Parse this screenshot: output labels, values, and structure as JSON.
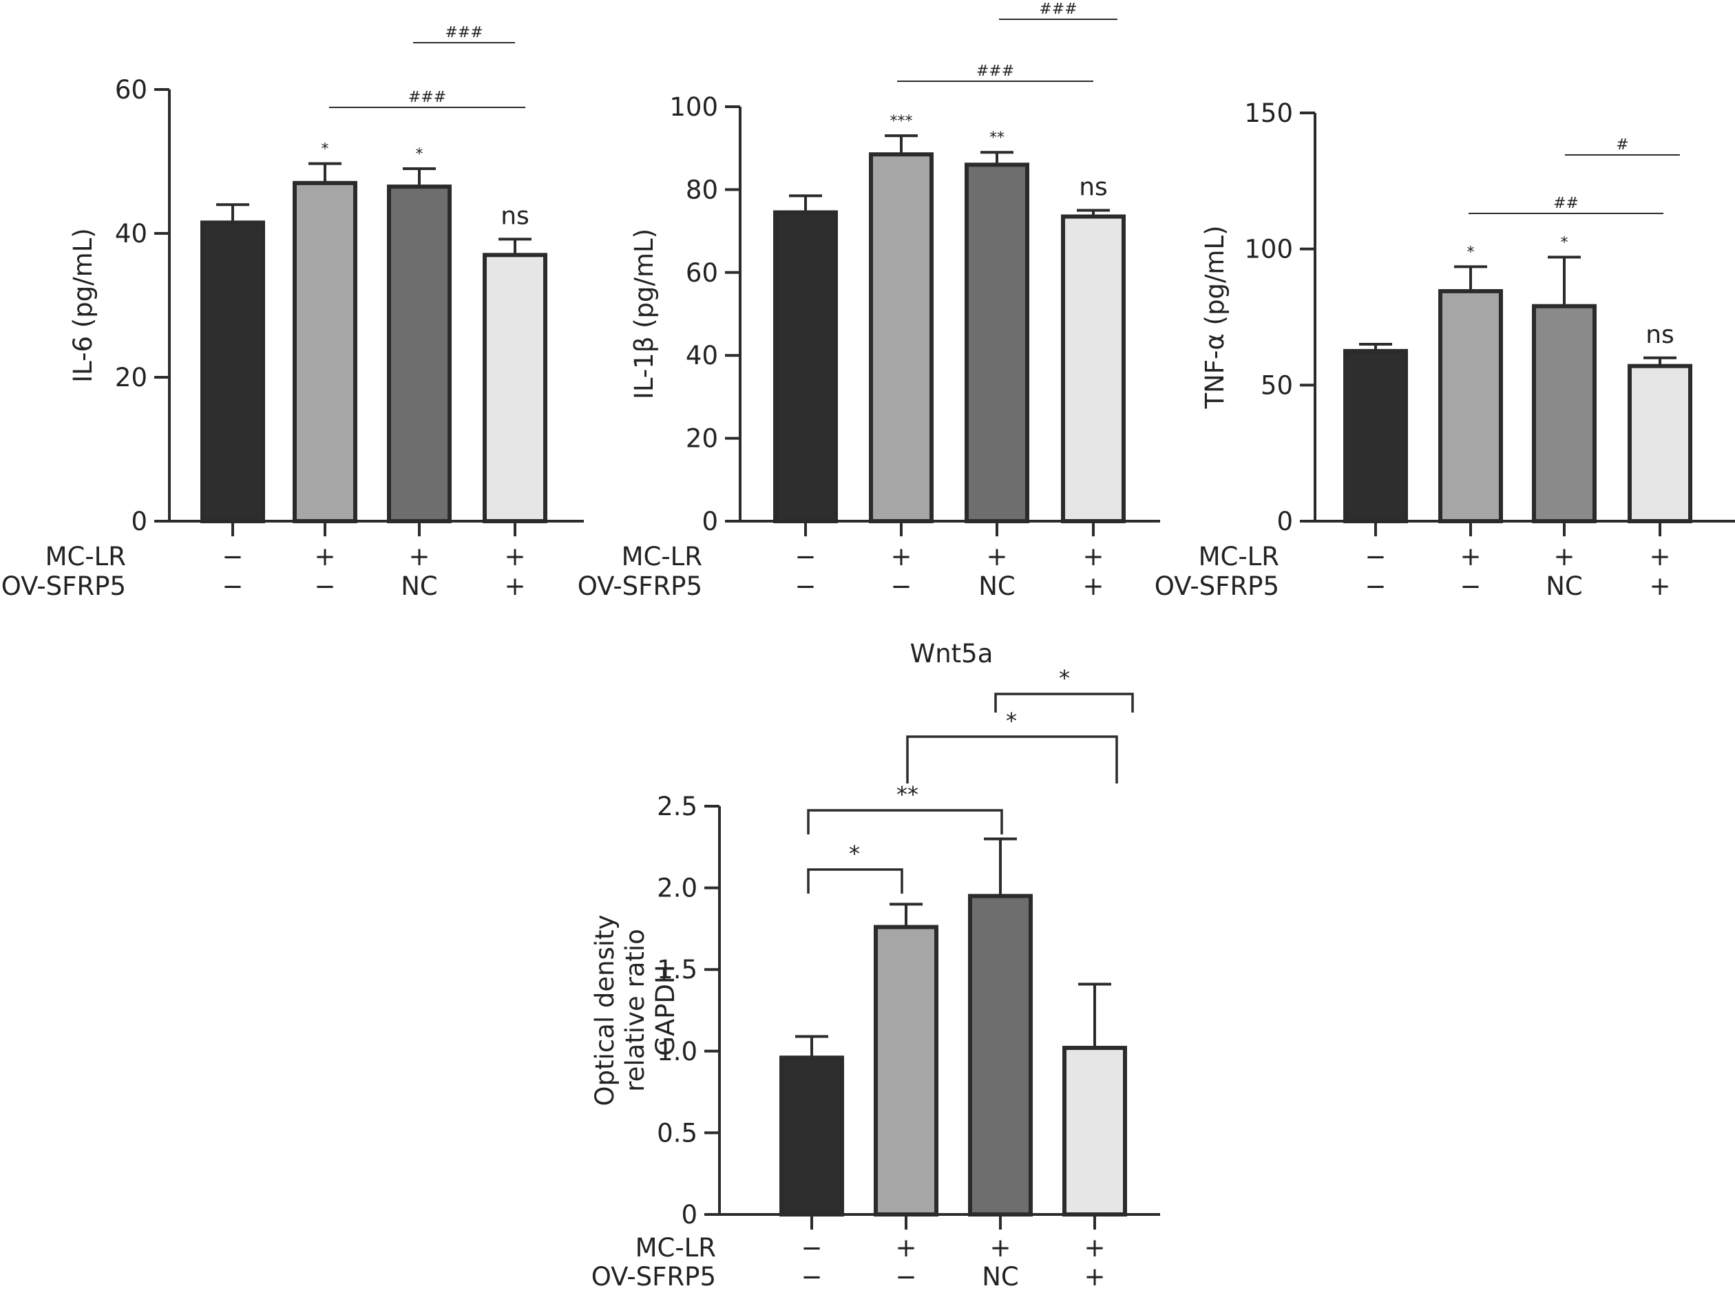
{
  "colors": {
    "axis": "#2b2b2b",
    "bar_stroke": "#2b2b2b",
    "group_fills": [
      "#2e2e2e",
      "#a6a6a6",
      "#6e6e6e",
      "#e6e6e6"
    ],
    "tnf_group_fills": [
      "#2e2e2e",
      "#a6a6a6",
      "#8a8a8a",
      "#e6e6e6"
    ]
  },
  "row_labels": {
    "mc_lr": "MC-LR",
    "ov_sfrp5": "OV-SFRP5"
  },
  "chart_data": [
    {
      "type": "bar",
      "title": "",
      "ylabel": "IL-6 (pg/mL)",
      "ylim": [
        0,
        60
      ],
      "yticks": [
        0,
        20,
        40,
        60
      ],
      "categories": [
        "1",
        "2",
        "3",
        "4"
      ],
      "mc_lr": [
        "−",
        "+",
        "+",
        "+"
      ],
      "ov_sfrp5": [
        "−",
        "−",
        "NC",
        "+"
      ],
      "values": [
        41.5,
        47.0,
        46.5,
        37.0
      ],
      "errors": [
        2.5,
        2.7,
        2.5,
        2.2
      ],
      "bar_annotations": [
        "",
        "*",
        "*",
        "ns"
      ],
      "comparisons": [
        {
          "from": 1,
          "to": 3,
          "label": "###"
        },
        {
          "from": 2,
          "to": 3,
          "label": "###"
        }
      ]
    },
    {
      "type": "bar",
      "title": "",
      "ylabel": "IL-1β (pg/mL)",
      "ylim": [
        0,
        100
      ],
      "yticks": [
        0,
        20,
        40,
        60,
        80,
        100
      ],
      "categories": [
        "1",
        "2",
        "3",
        "4"
      ],
      "mc_lr": [
        "−",
        "+",
        "+",
        "+"
      ],
      "ov_sfrp5": [
        "−",
        "−",
        "NC",
        "+"
      ],
      "values": [
        74.5,
        88.5,
        86.0,
        73.5
      ],
      "errors": [
        4.0,
        4.5,
        3.0,
        1.5
      ],
      "bar_annotations": [
        "",
        "***",
        "**",
        "ns"
      ],
      "comparisons": [
        {
          "from": 1,
          "to": 3,
          "label": "###"
        },
        {
          "from": 2,
          "to": 3,
          "label": "###"
        }
      ]
    },
    {
      "type": "bar",
      "title": "",
      "ylabel": "TNF-α (pg/mL)",
      "ylim": [
        0,
        150
      ],
      "yticks": [
        0,
        50,
        100,
        150
      ],
      "categories": [
        "1",
        "2",
        "3",
        "4"
      ],
      "mc_lr": [
        "−",
        "+",
        "+",
        "+"
      ],
      "ov_sfrp5": [
        "−",
        "−",
        "NC",
        "+"
      ],
      "values": [
        62.5,
        84.5,
        79.0,
        57.0
      ],
      "errors": [
        2.5,
        9.0,
        18.0,
        3.0
      ],
      "bar_annotations": [
        "",
        "*",
        "*",
        "ns"
      ],
      "comparisons": [
        {
          "from": 1,
          "to": 3,
          "label": "##"
        },
        {
          "from": 2,
          "to": 3,
          "label": "#"
        }
      ]
    },
    {
      "type": "bar",
      "title": "Wnt5a",
      "ylabel": "Optical density relative ratio GAPDH",
      "ylabel_lines": [
        "Optical density",
        "relative ratio",
        "GAPDH"
      ],
      "ylim": [
        0,
        2.5
      ],
      "yticks": [
        "0",
        "0.5",
        "1.0",
        "1.5",
        "2.0",
        "2.5"
      ],
      "categories": [
        "1",
        "2",
        "3",
        "4"
      ],
      "mc_lr": [
        "−",
        "+",
        "+",
        "+"
      ],
      "ov_sfrp5": [
        "−",
        "−",
        "NC",
        "+"
      ],
      "values": [
        0.96,
        1.76,
        1.95,
        1.02
      ],
      "errors": [
        0.13,
        0.14,
        0.35,
        0.39
      ],
      "bar_annotations": [
        "",
        "",
        "",
        ""
      ],
      "comparisons": [
        {
          "from": 0,
          "to": 1,
          "label": "*"
        },
        {
          "from": 0,
          "to": 2,
          "label": "**"
        },
        {
          "from": 1,
          "to": 3,
          "label": "*"
        },
        {
          "from": 2,
          "to": 3,
          "label": "*"
        }
      ]
    }
  ]
}
